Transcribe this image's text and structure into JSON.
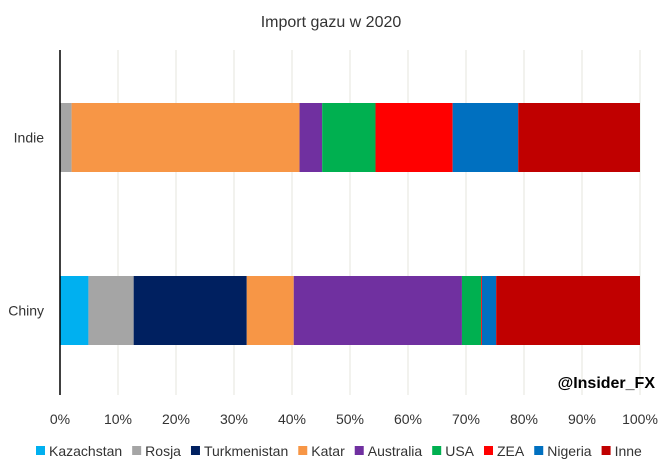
{
  "chart_data": {
    "type": "bar",
    "orientation": "horizontal",
    "stacked": "percent",
    "title": "Import gazu w 2020",
    "categories": [
      "Indie",
      "Chiny"
    ],
    "xlim": [
      0,
      100
    ],
    "xticks": [
      "0%",
      "10%",
      "20%",
      "30%",
      "40%",
      "50%",
      "60%",
      "70%",
      "80%",
      "90%",
      "100%"
    ],
    "grid": true,
    "legend_position": "bottom",
    "series": [
      {
        "name": "Kazachstan",
        "color": "#00B0F0",
        "values": [
          0,
          4.9
        ]
      },
      {
        "name": "Rosja",
        "color": "#A5A5A5",
        "values": [
          2.0,
          7.8
        ]
      },
      {
        "name": "Turkmenistan",
        "color": "#002060",
        "values": [
          0,
          19.5
        ]
      },
      {
        "name": "Katar",
        "color": "#F79646",
        "values": [
          39.3,
          8.1
        ]
      },
      {
        "name": "Australia",
        "color": "#7030A0",
        "values": [
          3.9,
          29.0
        ]
      },
      {
        "name": "USA",
        "color": "#00B050",
        "values": [
          9.2,
          3.3
        ]
      },
      {
        "name": "ZEA",
        "color": "#FF0000",
        "values": [
          13.3,
          0.15
        ]
      },
      {
        "name": "Nigeria",
        "color": "#0070C0",
        "values": [
          11.3,
          2.45
        ]
      },
      {
        "name": "Inne",
        "color": "#C00000",
        "values": [
          21.0,
          24.8
        ]
      }
    ],
    "watermark": "@Insider_FX"
  }
}
